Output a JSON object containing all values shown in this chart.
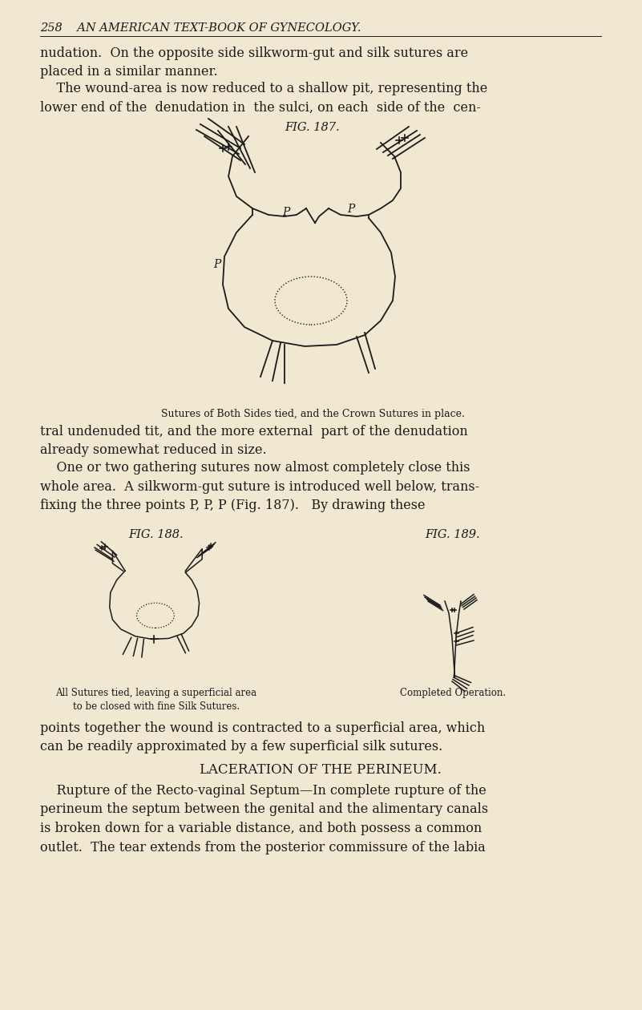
{
  "bg_color": "#f0e8d0",
  "text_color": "#1a1a1a",
  "header_text": "258    AN AMERICAN TEXT-BOOK OF GYNECOLOGY.",
  "para1": "nudation.  On the opposite side silkworm-gut and silk sutures are\nplaced in a similar manner.",
  "para2": "    The wound-area is now reduced to a shallow pit, representing the\nlower end of the  denudation in  the sulci, on each  side of the  cen-",
  "fig187_label": "FIG. 187.",
  "fig187_caption": "Sutures of Both Sides tied, and the Crown Sutures in place.",
  "para3": "tral undenuded tit, and the more external  part of the denudation\nalready somewhat reduced in size.",
  "para4": "    One or two gathering sutures now almost completely close this\nwhole area.  A silkworm-gut suture is introduced well below, trans-\nfixing the three points P, P, P (Fig. 187).   By drawing these",
  "fig188_label": "FIG. 188.",
  "fig189_label": "FIG. 189.",
  "fig188_caption": "All Sutures tied, leaving a superficial area\nto be closed with fine Silk Sutures.",
  "fig189_caption": "Completed Operation.",
  "para5": "points together the wound is contracted to a superficial area, which\ncan be readily approximated by a few superficial silk sutures.",
  "section_title": "LACERATION OF THE PERINEUM.",
  "para6": "    Rupture of the Recto-vaginal Septum—In complete rupture of the\nperineum the septum between the genital and the alimentary canals\nis broken down for a variable distance, and both possess a common\noutlet.  The tear extends from the posterior commissure of the labia"
}
